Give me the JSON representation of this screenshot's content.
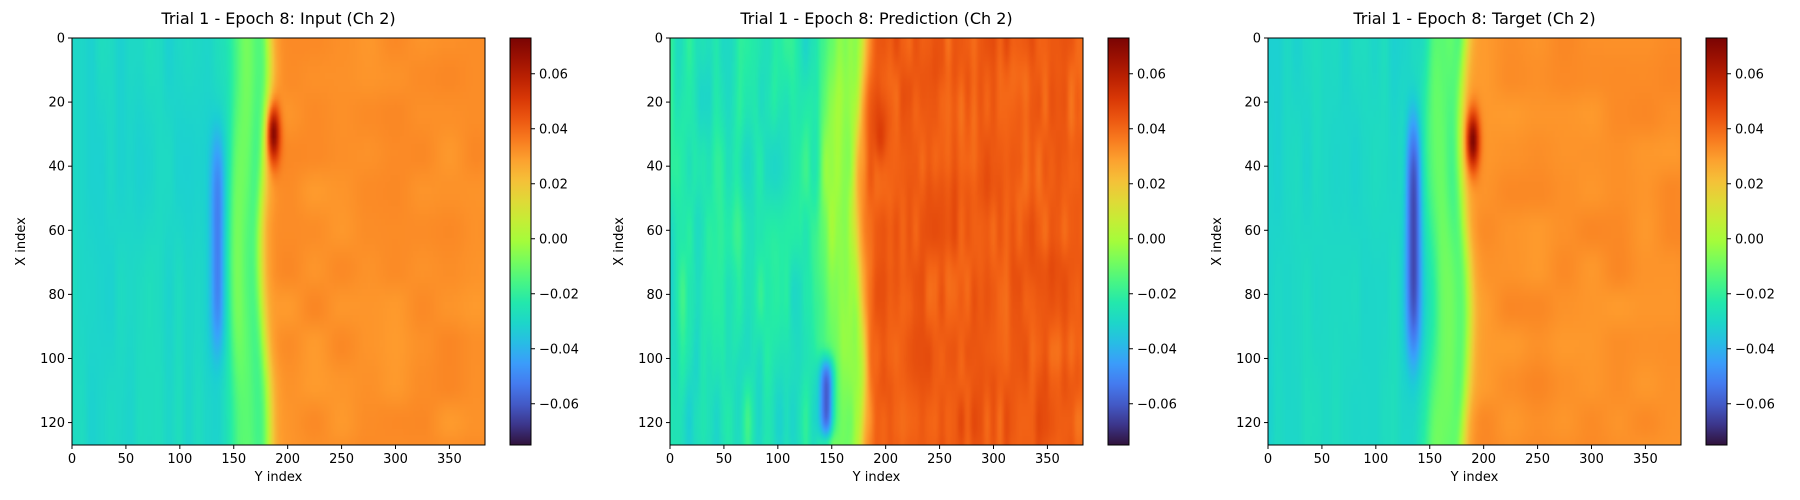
{
  "chart_data": [
    {
      "type": "heatmap",
      "panel": "input",
      "title": "Trial 1 - Epoch 8: Input (Ch 2)",
      "xlabel": "Y index",
      "ylabel": "X index",
      "xlim": [
        0,
        383
      ],
      "ylim": [
        127,
        0
      ],
      "xticks": [
        0,
        50,
        100,
        150,
        200,
        250,
        300,
        350
      ],
      "yticks": [
        0,
        20,
        40,
        60,
        80,
        100,
        120
      ],
      "colormap": "turbo",
      "vmin": -0.075,
      "vmax": 0.073,
      "colorbar_ticks": [
        "0.06",
        "0.04",
        "0.02",
        "0.00",
        "−0.02",
        "−0.04",
        "−0.06"
      ],
      "colorbar_tick_values": [
        0.06,
        0.04,
        0.02,
        0.0,
        -0.02,
        -0.04,
        -0.06
      ],
      "front_y_position": 178,
      "left_region_value": -0.03,
      "right_region_value": 0.032,
      "blue_streak": {
        "y_center": 135,
        "x_range": [
          30,
          100
        ],
        "min_value": -0.055
      },
      "dark_red_spot": {
        "y": 187,
        "x": 30,
        "value": 0.07
      }
    },
    {
      "type": "heatmap",
      "panel": "prediction",
      "title": "Trial 1 - Epoch 8: Prediction (Ch 2)",
      "xlabel": "Y index",
      "ylabel": "X index",
      "xlim": [
        0,
        383
      ],
      "ylim": [
        127,
        0
      ],
      "xticks": [
        0,
        50,
        100,
        150,
        200,
        250,
        300,
        350
      ],
      "yticks": [
        0,
        20,
        40,
        60,
        80,
        100,
        120
      ],
      "colormap": "turbo",
      "vmin": -0.075,
      "vmax": 0.073,
      "colorbar_ticks": [
        "0.06",
        "0.04",
        "0.02",
        "0.00",
        "−0.02",
        "−0.04",
        "−0.06"
      ],
      "colorbar_tick_values": [
        0.06,
        0.04,
        0.02,
        0.0,
        -0.02,
        -0.04,
        -0.06
      ],
      "front_y_position": 175,
      "left_region_value": -0.025,
      "right_region_value": 0.042,
      "blue_streak": {
        "y_center": 145,
        "x_range": [
          100,
          125
        ],
        "min_value": -0.065
      },
      "dark_red_spot": {
        "y": 195,
        "x": 30,
        "value": 0.05
      }
    },
    {
      "type": "heatmap",
      "panel": "target",
      "title": "Trial 1 - Epoch 8: Target (Ch 2)",
      "xlabel": "Y index",
      "ylabel": "X index",
      "xlim": [
        0,
        383
      ],
      "ylim": [
        127,
        0
      ],
      "xticks": [
        0,
        50,
        100,
        150,
        200,
        250,
        300,
        350
      ],
      "yticks": [
        0,
        20,
        40,
        60,
        80,
        100,
        120
      ],
      "colormap": "turbo",
      "vmin": -0.075,
      "vmax": 0.073,
      "colorbar_ticks": [
        "0.06",
        "0.04",
        "0.02",
        "0.00",
        "−0.02",
        "−0.04",
        "−0.06"
      ],
      "colorbar_tick_values": [
        0.06,
        0.04,
        0.02,
        0.0,
        -0.02,
        -0.04,
        -0.06
      ],
      "front_y_position": 182,
      "left_region_value": -0.03,
      "right_region_value": 0.032,
      "blue_streak": {
        "y_center": 135,
        "x_range": [
          25,
          100
        ],
        "min_value": -0.068
      },
      "dark_red_spot": {
        "y": 190,
        "x": 32,
        "value": 0.072
      }
    }
  ]
}
